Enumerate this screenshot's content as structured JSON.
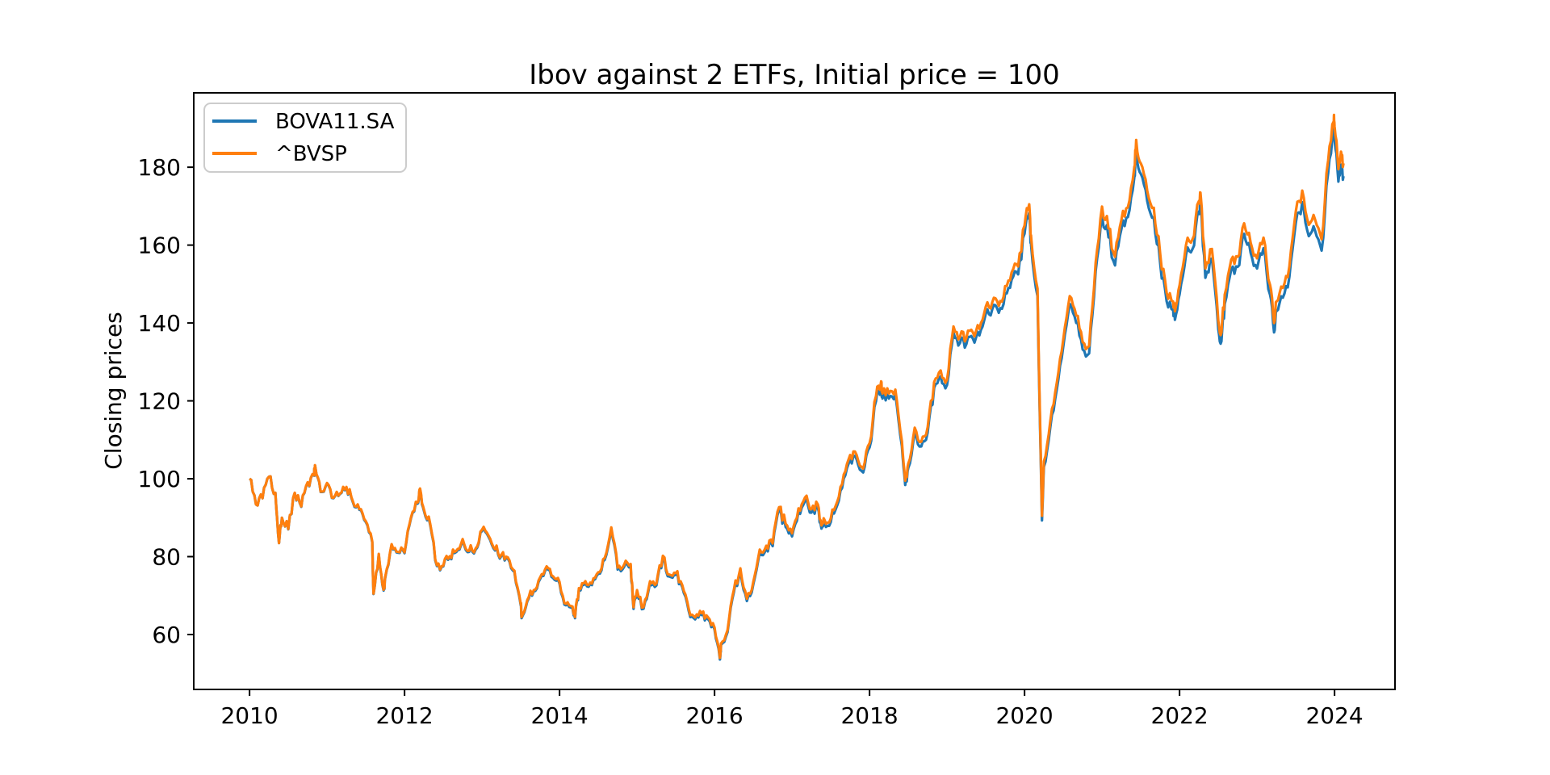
{
  "figure": {
    "background": "#ffffff",
    "spine_color": "#000000"
  },
  "chart_data": {
    "type": "line",
    "title": "Ibov against 2 ETFs, Initial price = 100",
    "xlabel": "",
    "ylabel": "Closing prices",
    "grid": false,
    "legend": {
      "position": "upper left",
      "entries": [
        "BOVA11.SA",
        "^BVSP"
      ]
    },
    "x_ticks": [
      2010,
      2012,
      2014,
      2016,
      2018,
      2020,
      2022,
      2024
    ],
    "y_ticks": [
      60,
      80,
      100,
      120,
      140,
      160,
      180
    ],
    "xlim": [
      2009.28,
      2024.78
    ],
    "ylim": [
      45.9,
      199.1
    ],
    "x_unit": "decimal_year",
    "x": [
      2010.0,
      2010.083,
      2010.167,
      2010.25,
      2010.333,
      2010.38,
      2010.417,
      2010.5,
      2010.583,
      2010.667,
      2010.75,
      2010.833,
      2010.845,
      2010.917,
      2011.0,
      2011.083,
      2011.167,
      2011.25,
      2011.333,
      2011.417,
      2011.5,
      2011.583,
      2011.6,
      2011.667,
      2011.73,
      2011.75,
      2011.833,
      2011.917,
      2012.0,
      2012.083,
      2012.167,
      2012.2,
      2012.25,
      2012.333,
      2012.417,
      2012.5,
      2012.583,
      2012.667,
      2012.75,
      2012.833,
      2012.917,
      2013.0,
      2013.083,
      2013.167,
      2013.25,
      2013.333,
      2013.417,
      2013.5,
      2013.51,
      2013.583,
      2013.667,
      2013.75,
      2013.833,
      2013.917,
      2014.0,
      2014.083,
      2014.167,
      2014.2,
      2014.25,
      2014.333,
      2014.417,
      2014.5,
      2014.583,
      2014.667,
      2014.75,
      2014.833,
      2014.917,
      2014.955,
      2015.0,
      2015.083,
      2015.167,
      2015.25,
      2015.333,
      2015.417,
      2015.5,
      2015.583,
      2015.667,
      2015.75,
      2015.833,
      2015.917,
      2016.0,
      2016.07,
      2016.083,
      2016.167,
      2016.25,
      2016.333,
      2016.417,
      2016.5,
      2016.583,
      2016.667,
      2016.75,
      2016.833,
      2016.917,
      2017.0,
      2017.083,
      2017.167,
      2017.25,
      2017.333,
      2017.38,
      2017.417,
      2017.5,
      2017.583,
      2017.667,
      2017.75,
      2017.833,
      2017.917,
      2018.0,
      2018.083,
      2018.15,
      2018.167,
      2018.25,
      2018.333,
      2018.417,
      2018.46,
      2018.5,
      2018.583,
      2018.667,
      2018.75,
      2018.833,
      2018.917,
      2019.0,
      2019.083,
      2019.167,
      2019.25,
      2019.333,
      2019.417,
      2019.5,
      2019.583,
      2019.667,
      2019.75,
      2019.833,
      2019.917,
      2020.0,
      2020.06,
      2020.083,
      2020.167,
      2020.225,
      2020.25,
      2020.333,
      2020.417,
      2020.5,
      2020.583,
      2020.667,
      2020.75,
      2020.833,
      2020.917,
      2021.0,
      2021.083,
      2021.167,
      2021.25,
      2021.333,
      2021.417,
      2021.44,
      2021.5,
      2021.583,
      2021.667,
      2021.75,
      2021.833,
      2021.917,
      2021.94,
      2022.0,
      2022.083,
      2022.167,
      2022.25,
      2022.27,
      2022.333,
      2022.417,
      2022.5,
      2022.54,
      2022.583,
      2022.667,
      2022.75,
      2022.833,
      2022.917,
      2023.0,
      2023.083,
      2023.167,
      2023.22,
      2023.25,
      2023.333,
      2023.417,
      2023.5,
      2023.583,
      2023.667,
      2023.75,
      2023.833,
      2023.917,
      2023.99,
      2024.0,
      2024.05,
      2024.083,
      2024.115
    ],
    "series": [
      {
        "name": "BOVA11.SA",
        "color": "#1f77b4",
        "values": [
          100.0,
          93.4,
          95.0,
          100.5,
          96.4,
          83.5,
          90.0,
          87.0,
          96.3,
          92.8,
          99.0,
          100.8,
          103.4,
          96.6,
          98.8,
          95.0,
          96.1,
          97.7,
          94.0,
          92.0,
          88.9,
          83.7,
          70.4,
          80.5,
          71.3,
          74.5,
          83.0,
          81.0,
          80.9,
          89.9,
          93.6,
          97.2,
          91.8,
          87.9,
          77.6,
          77.5,
          79.8,
          81.2,
          84.2,
          81.2,
          81.8,
          86.6,
          85.1,
          81.6,
          80.2,
          79.5,
          76.1,
          67.5,
          64.2,
          68.5,
          71.1,
          74.3,
          77.1,
          74.5,
          73.1,
          67.5,
          66.8,
          64.2,
          71.5,
          73.3,
          72.7,
          75.6,
          79.2,
          87.0,
          76.7,
          77.4,
          77.6,
          66.6,
          70.9,
          66.6,
          73.2,
          72.6,
          79.7,
          74.9,
          75.3,
          72.2,
          66.0,
          63.9,
          65.0,
          63.9,
          61.3,
          53.6,
          57.3,
          60.6,
          70.9,
          76.4,
          68.6,
          72.9,
          81.1,
          82.1,
          82.7,
          91.9,
          87.6,
          85.2,
          91.6,
          94.3,
          91.3,
          92.5,
          87.2,
          88.7,
          88.9,
          93.2,
          100.1,
          105.0,
          105.0,
          101.6,
          108.0,
          119.9,
          123.7,
          120.6,
          120.6,
          121.6,
          108.4,
          98.4,
          102.8,
          111.9,
          108.3,
          111.9,
          123.4,
          126.3,
          124.1,
          137.5,
          134.9,
          134.6,
          136.0,
          136.8,
          142.4,
          143.5,
          142.6,
          147.6,
          151.1,
          152.5,
          162.9,
          168.3,
          160.4,
          146.9,
          89.3,
          103.1,
          113.4,
          123.1,
          134.0,
          144.9,
          140.0,
          133.2,
          132.2,
          153.3,
          167.5,
          162.0,
          154.8,
          164.1,
          167.2,
          177.6,
          184.3,
          178.3,
          171.3,
          167.1,
          155.4,
          145.6,
          143.3,
          140.8,
          147.3,
          157.5,
          159.0,
          168.6,
          170.8,
          151.6,
          156.5,
          138.4,
          135.3,
          144.9,
          153.8,
          154.4,
          162.9,
          158.0,
          154.0,
          159.2,
          147.3,
          137.6,
          143.0,
          146.5,
          151.9,
          165.7,
          171.0,
          162.3,
          163.6,
          158.6,
          178.5,
          188.4,
          187.1,
          176.3,
          180.7,
          177.7
        ]
      },
      {
        "name": "^BVSP",
        "color": "#ff7f0e",
        "values": [
          100.0,
          93.4,
          95.0,
          100.5,
          96.4,
          83.5,
          90.0,
          87.1,
          96.4,
          92.9,
          99.1,
          100.9,
          103.5,
          96.7,
          98.9,
          95.1,
          96.2,
          97.9,
          94.2,
          92.2,
          89.1,
          83.9,
          70.5,
          80.7,
          71.5,
          74.7,
          83.2,
          81.2,
          81.1,
          90.1,
          93.9,
          97.5,
          92.1,
          88.2,
          77.8,
          77.7,
          80.1,
          81.5,
          84.5,
          81.5,
          82.1,
          86.9,
          85.4,
          81.9,
          80.5,
          79.8,
          76.4,
          67.8,
          64.5,
          68.8,
          71.4,
          74.7,
          77.5,
          74.9,
          73.5,
          67.9,
          67.2,
          64.5,
          71.9,
          73.7,
          73.1,
          76.0,
          79.7,
          87.5,
          77.2,
          77.9,
          78.1,
          67.0,
          71.4,
          67.0,
          73.7,
          73.1,
          80.2,
          75.4,
          75.8,
          72.7,
          66.5,
          64.4,
          65.5,
          64.4,
          61.8,
          54.0,
          57.7,
          61.1,
          71.5,
          77.0,
          69.2,
          73.5,
          81.8,
          82.8,
          83.4,
          92.7,
          88.4,
          86.0,
          92.4,
          95.2,
          92.2,
          93.4,
          88.0,
          89.5,
          89.8,
          94.1,
          101.1,
          106.1,
          106.1,
          102.6,
          109.1,
          121.2,
          125.0,
          121.9,
          121.9,
          122.9,
          109.6,
          99.5,
          103.9,
          113.1,
          109.5,
          113.2,
          124.8,
          127.8,
          125.5,
          139.1,
          136.5,
          136.2,
          137.6,
          138.5,
          144.2,
          145.3,
          144.4,
          149.5,
          153.0,
          154.5,
          165.0,
          170.5,
          162.5,
          148.8,
          90.5,
          104.5,
          114.9,
          124.8,
          135.8,
          146.9,
          141.9,
          135.1,
          134.1,
          155.5,
          169.9,
          164.3,
          157.0,
          166.5,
          169.7,
          180.2,
          187.0,
          181.0,
          173.9,
          169.6,
          157.8,
          147.8,
          145.5,
          143.0,
          149.6,
          160.0,
          161.5,
          171.3,
          173.5,
          154.0,
          159.0,
          140.6,
          137.5,
          147.3,
          156.3,
          157.0,
          165.6,
          160.6,
          156.6,
          161.9,
          149.8,
          140.0,
          145.5,
          149.0,
          154.6,
          168.6,
          174.0,
          165.2,
          166.5,
          161.5,
          181.7,
          191.8,
          190.5,
          179.5,
          184.0,
          181.0
        ]
      }
    ]
  }
}
